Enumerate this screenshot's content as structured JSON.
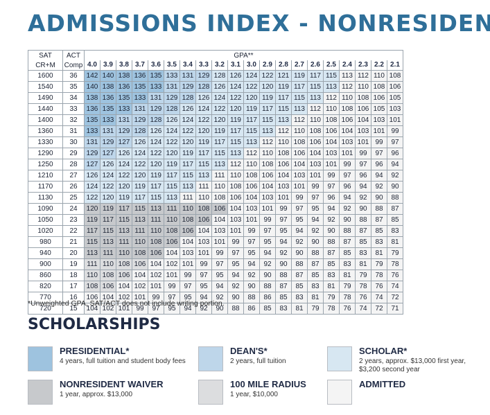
{
  "title": "ADMISSIONS INDEX - NONRESIDENT",
  "table": {
    "sat_header": [
      "SAT",
      "CR+M"
    ],
    "act_header": [
      "ACT",
      "Comp"
    ],
    "gpa_title": "GPA**",
    "gpa_columns": [
      "4.0",
      "3.9",
      "3.8",
      "3.7",
      "3.6",
      "3.5",
      "3.4",
      "3.3",
      "3.2",
      "3.1",
      "3.0",
      "2.9",
      "2.8",
      "2.7",
      "2.6",
      "2.5",
      "2.4",
      "2.3",
      "2.2",
      "2.1"
    ],
    "rows": [
      {
        "sat": "1600",
        "act": "36",
        "vals": [
          142,
          140,
          138,
          136,
          135,
          133,
          131,
          129,
          128,
          126,
          124,
          122,
          121,
          119,
          117,
          115,
          113,
          112,
          110,
          108
        ],
        "cat": "PPPPPDDDSSSSSSSSAAAA"
      },
      {
        "sat": "1540",
        "act": "35",
        "vals": [
          140,
          138,
          136,
          135,
          133,
          131,
          129,
          128,
          126,
          124,
          122,
          120,
          119,
          117,
          115,
          113,
          112,
          110,
          108,
          106
        ],
        "cat": "PPPPPDDDSSSSSSSSAAAA"
      },
      {
        "sat": "1490",
        "act": "34",
        "vals": [
          138,
          136,
          135,
          133,
          131,
          129,
          128,
          126,
          124,
          122,
          120,
          119,
          117,
          115,
          113,
          112,
          110,
          108,
          106,
          105
        ],
        "cat": "PPPPDDDSSSSSSSSAAAAA"
      },
      {
        "sat": "1440",
        "act": "33",
        "vals": [
          136,
          135,
          133,
          131,
          129,
          128,
          126,
          124,
          122,
          120,
          119,
          117,
          115,
          113,
          112,
          110,
          108,
          106,
          105,
          103
        ],
        "cat": "PPPDDDSSSSSSSSAAAAAA"
      },
      {
        "sat": "1400",
        "act": "32",
        "vals": [
          135,
          133,
          131,
          129,
          128,
          126,
          124,
          122,
          120,
          119,
          117,
          115,
          113,
          112,
          110,
          108,
          106,
          104,
          103,
          101
        ],
        "cat": "PPDDDSSSSSSSSAAAAAAA"
      },
      {
        "sat": "1360",
        "act": "31",
        "vals": [
          133,
          131,
          129,
          128,
          126,
          124,
          122,
          120,
          119,
          117,
          115,
          113,
          112,
          110,
          108,
          106,
          104,
          103,
          101,
          99
        ],
        "cat": "PDDDSSSSSSSSAAAAAAAA"
      },
      {
        "sat": "1330",
        "act": "30",
        "vals": [
          131,
          129,
          127,
          126,
          124,
          122,
          120,
          119,
          117,
          115,
          113,
          112,
          110,
          108,
          106,
          104,
          103,
          101,
          99,
          97
        ],
        "cat": "DDDSSSSSSSSAAAAAAAAA"
      },
      {
        "sat": "1290",
        "act": "29",
        "vals": [
          129,
          127,
          126,
          124,
          122,
          120,
          119,
          117,
          115,
          113,
          112,
          110,
          108,
          106,
          104,
          103,
          101,
          99,
          97,
          96
        ],
        "cat": "DDSSSSSSSSAAAAAAAAAA"
      },
      {
        "sat": "1250",
        "act": "28",
        "vals": [
          127,
          126,
          124,
          122,
          120,
          119,
          117,
          115,
          113,
          112,
          110,
          108,
          106,
          104,
          103,
          101,
          99,
          97,
          96,
          94
        ],
        "cat": "DSSSSSSSSAAAAAAAAAAA"
      },
      {
        "sat": "1210",
        "act": "27",
        "vals": [
          126,
          124,
          122,
          120,
          119,
          117,
          115,
          113,
          111,
          110,
          108,
          106,
          104,
          103,
          101,
          99,
          97,
          96,
          94,
          92
        ],
        "cat": "SSSSSSSSAAAAAAAAAAAA"
      },
      {
        "sat": "1170",
        "act": "26",
        "vals": [
          124,
          122,
          120,
          119,
          117,
          115,
          113,
          111,
          110,
          108,
          106,
          104,
          103,
          101,
          99,
          97,
          96,
          94,
          92,
          90
        ],
        "cat": "SSSSSSSAAAAAAAAAAAAA"
      },
      {
        "sat": "1130",
        "act": "25",
        "vals": [
          122,
          120,
          119,
          117,
          115,
          113,
          111,
          110,
          108,
          106,
          104,
          103,
          101,
          99,
          97,
          96,
          94,
          92,
          90,
          88
        ],
        "cat": "SSSSSSAAAAAAAAAAAAAA"
      },
      {
        "sat": "1090",
        "act": "24",
        "vals": [
          120,
          119,
          117,
          115,
          113,
          111,
          110,
          108,
          106,
          104,
          103,
          101,
          99,
          97,
          95,
          94,
          92,
          90,
          88,
          87
        ],
        "cat": "WWWWWWWWWAAAAAAAAAAA"
      },
      {
        "sat": "1050",
        "act": "23",
        "vals": [
          119,
          117,
          115,
          113,
          111,
          110,
          108,
          106,
          104,
          103,
          101,
          99,
          97,
          95,
          94,
          92,
          90,
          88,
          87,
          85
        ],
        "cat": "WWWWWWWWAAAAAAAAAAAA"
      },
      {
        "sat": "1020",
        "act": "22",
        "vals": [
          117,
          115,
          113,
          111,
          110,
          108,
          106,
          104,
          103,
          101,
          99,
          97,
          95,
          94,
          92,
          90,
          88,
          87,
          85,
          83
        ],
        "cat": "WWWWWWWAAAAAAAAAAAAA"
      },
      {
        "sat": "980",
        "act": "21",
        "vals": [
          115,
          113,
          111,
          110,
          108,
          106,
          104,
          103,
          101,
          99,
          97,
          95,
          94,
          92,
          90,
          88,
          87,
          85,
          83,
          81
        ],
        "cat": "WWWWWWAAAAAAAAAAAAAA"
      },
      {
        "sat": "940",
        "act": "20",
        "vals": [
          113,
          111,
          110,
          108,
          106,
          104,
          103,
          101,
          99,
          97,
          95,
          94,
          92,
          90,
          88,
          87,
          85,
          83,
          81,
          79
        ],
        "cat": "WWWWWAAAAAAAAAAAAAAA"
      },
      {
        "sat": "900",
        "act": "19",
        "vals": [
          111,
          110,
          108,
          106,
          104,
          102,
          101,
          99,
          97,
          95,
          94,
          92,
          90,
          88,
          87,
          85,
          83,
          81,
          79,
          78
        ],
        "cat": "RRRRAAAAAAAAAAAAAAAA"
      },
      {
        "sat": "860",
        "act": "18",
        "vals": [
          110,
          108,
          106,
          104,
          102,
          101,
          99,
          97,
          95,
          94,
          92,
          90,
          88,
          87,
          85,
          83,
          81,
          79,
          78,
          76
        ],
        "cat": "RRRAAAAAAAAAAAAAAAAA"
      },
      {
        "sat": "820",
        "act": "17",
        "vals": [
          108,
          106,
          104,
          102,
          101,
          99,
          97,
          95,
          94,
          92,
          90,
          88,
          87,
          85,
          83,
          81,
          79,
          78,
          76,
          74
        ],
        "cat": "RRAAAAAAAAAAAAAAAAAA"
      },
      {
        "sat": "770",
        "act": "16",
        "vals": [
          106,
          104,
          102,
          101,
          99,
          97,
          95,
          94,
          92,
          90,
          88,
          86,
          85,
          83,
          81,
          79,
          78,
          76,
          74,
          72
        ],
        "cat": "AAAAAAAAAAAAAAAAAAAA"
      },
      {
        "sat": "720",
        "act": "15",
        "vals": [
          104,
          102,
          101,
          99,
          97,
          95,
          94,
          92,
          90,
          88,
          86,
          85,
          83,
          81,
          79,
          78,
          76,
          74,
          72,
          71
        ],
        "cat": "AAAAAAAAAAAAAAAAAAAA"
      }
    ]
  },
  "footnote": "*Unweighted GPA, SAT/ACT does not include writing portion.",
  "scholarships": {
    "title": "SCHOLARSHIPS",
    "items": [
      {
        "name": "PRESIDENTIAL*",
        "desc": [
          "4 years, full tuition and student body fees"
        ],
        "color": "#9ec3df"
      },
      {
        "name": "DEAN'S*",
        "desc": [
          "2 years, full tuition"
        ],
        "color": "#bed6ea"
      },
      {
        "name": "SCHOLAR*",
        "desc": [
          "2 years, approx. $13,000 first year,",
          "$3,200 second year"
        ],
        "color": "#d7e7f2"
      },
      {
        "name": "NONRESIDENT WAIVER",
        "desc": [
          "1 year, approx. $13,000"
        ],
        "color": "#c7c9cc"
      },
      {
        "name": "100 MILE RADIUS",
        "desc": [
          "1 year, $10,000"
        ],
        "color": "#dcdddf"
      },
      {
        "name": "ADMITTED",
        "desc": [],
        "color": "#f4f4f4"
      }
    ]
  }
}
